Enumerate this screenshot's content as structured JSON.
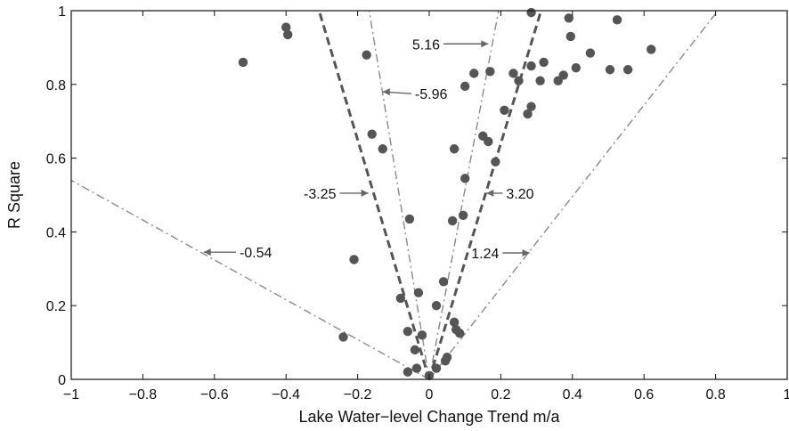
{
  "chart_data": {
    "type": "scatter",
    "title": "",
    "xlabel": "Lake Water−level Change Trend m/a",
    "ylabel": "R Square",
    "xlim": [
      -1,
      1
    ],
    "ylim": [
      0,
      1
    ],
    "grid": false,
    "x_ticks": [
      "−1",
      "−0.8",
      "−0.6",
      "−0.4",
      "−0.2",
      "0",
      "0.2",
      "0.4",
      "0.6",
      "0.8",
      "1"
    ],
    "y_ticks": [
      "0",
      "0.2",
      "0.4",
      "0.6",
      "0.8",
      "1"
    ],
    "points": [
      [
        -0.52,
        0.86
      ],
      [
        -0.4,
        0.955
      ],
      [
        -0.395,
        0.935
      ],
      [
        -0.175,
        0.88
      ],
      [
        -0.16,
        0.665
      ],
      [
        -0.13,
        0.625
      ],
      [
        -0.21,
        0.325
      ],
      [
        -0.24,
        0.115
      ],
      [
        -0.055,
        0.435
      ],
      [
        -0.08,
        0.22
      ],
      [
        -0.06,
        0.13
      ],
      [
        -0.03,
        0.235
      ],
      [
        -0.02,
        0.12
      ],
      [
        -0.04,
        0.08
      ],
      [
        -0.035,
        0.03
      ],
      [
        -0.06,
        0.02
      ],
      [
        0.0,
        0.01
      ],
      [
        0.02,
        0.03
      ],
      [
        0.045,
        0.05
      ],
      [
        0.05,
        0.06
      ],
      [
        0.02,
        0.2
      ],
      [
        0.04,
        0.265
      ],
      [
        0.07,
        0.155
      ],
      [
        0.075,
        0.135
      ],
      [
        0.085,
        0.125
      ],
      [
        0.065,
        0.43
      ],
      [
        0.095,
        0.445
      ],
      [
        0.07,
        0.625
      ],
      [
        0.1,
        0.545
      ],
      [
        0.1,
        0.795
      ],
      [
        0.125,
        0.83
      ],
      [
        0.15,
        0.66
      ],
      [
        0.165,
        0.645
      ],
      [
        0.17,
        0.835
      ],
      [
        0.185,
        0.59
      ],
      [
        0.21,
        0.73
      ],
      [
        0.235,
        0.83
      ],
      [
        0.25,
        0.81
      ],
      [
        0.275,
        0.72
      ],
      [
        0.285,
        0.74
      ],
      [
        0.285,
        0.85
      ],
      [
        0.31,
        0.81
      ],
      [
        0.32,
        0.86
      ],
      [
        0.285,
        0.995
      ],
      [
        0.36,
        0.81
      ],
      [
        0.375,
        0.825
      ],
      [
        0.39,
        0.98
      ],
      [
        0.395,
        0.93
      ],
      [
        0.41,
        0.845
      ],
      [
        0.45,
        0.885
      ],
      [
        0.505,
        0.84
      ],
      [
        0.525,
        0.975
      ],
      [
        0.555,
        0.84
      ],
      [
        0.62,
        0.895
      ]
    ],
    "trend_lines": [
      {
        "label": "5.16",
        "slope": 5.16,
        "style": "dashdot",
        "label_at": [
          0.03,
          0.91
        ],
        "arrow_to": [
          0.165,
          0.91
        ],
        "label_side": "left"
      },
      {
        "label": "-5.96",
        "slope": -5.96,
        "style": "dashdot",
        "label_at": [
          -0.04,
          0.775
        ],
        "arrow_to": [
          -0.13,
          0.78
        ],
        "label_side": "right"
      },
      {
        "label": "-3.25",
        "slope": -3.25,
        "style": "dashed",
        "label_at": [
          -0.26,
          0.505
        ],
        "arrow_to": [
          -0.17,
          0.505
        ],
        "label_side": "left"
      },
      {
        "label": "3.20",
        "slope": 3.2,
        "style": "dashed",
        "label_at": [
          0.215,
          0.505
        ],
        "arrow_to": [
          0.16,
          0.505
        ],
        "label_side": "right"
      },
      {
        "label": "-0.54",
        "slope": -0.54,
        "style": "dashdot",
        "label_at": [
          -0.53,
          0.345
        ],
        "arrow_to": [
          -0.63,
          0.345
        ],
        "label_side": "right"
      },
      {
        "label": "1.24",
        "slope": 1.24,
        "style": "dashdot",
        "label_at": [
          0.195,
          0.343
        ],
        "arrow_to": [
          0.28,
          0.343
        ],
        "label_side": "left"
      }
    ]
  }
}
